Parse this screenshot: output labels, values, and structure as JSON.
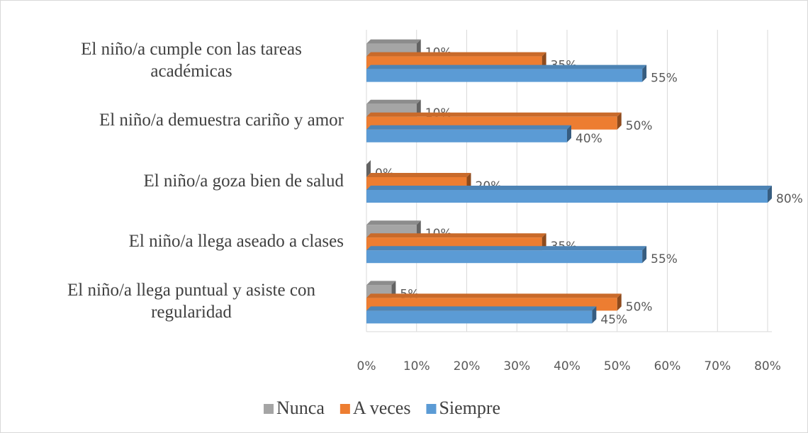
{
  "chart_data": {
    "type": "bar",
    "orientation": "horizontal",
    "categories": [
      "El niño/a cumple con las tareas académicas",
      "El niño/a demuestra cariño y amor",
      "El niño/a goza bien de salud",
      "El niño/a llega aseado a clases",
      "El niño/a llega puntual y asiste con regularidad"
    ],
    "series": [
      {
        "name": "Nunca",
        "color": "#a5a5a5",
        "values": [
          10,
          10,
          0,
          10,
          5
        ],
        "value_labels": [
          "10%",
          "10%",
          "0%",
          "10%",
          "5%"
        ]
      },
      {
        "name": "A veces",
        "color": "#ed7d31",
        "values": [
          35,
          50,
          20,
          35,
          50
        ],
        "value_labels": [
          "35%",
          "50%",
          "20%",
          "35%",
          "50%"
        ]
      },
      {
        "name": "Siempre",
        "color": "#5b9bd5",
        "values": [
          55,
          40,
          80,
          55,
          45
        ],
        "value_labels": [
          "55%",
          "40%",
          "80%",
          "55%",
          "45%"
        ]
      }
    ],
    "xlim": [
      0,
      80
    ],
    "xticks": [
      {
        "value": 0,
        "label": "0%"
      },
      {
        "value": 10,
        "label": "10%"
      },
      {
        "value": 20,
        "label": "20%"
      },
      {
        "value": 30,
        "label": "30%"
      },
      {
        "value": 40,
        "label": "40%"
      },
      {
        "value": 50,
        "label": "50%"
      },
      {
        "value": 60,
        "label": "60%"
      },
      {
        "value": 70,
        "label": "70%"
      },
      {
        "value": 80,
        "label": "80%"
      }
    ],
    "grid": true,
    "legend": "bottom"
  }
}
